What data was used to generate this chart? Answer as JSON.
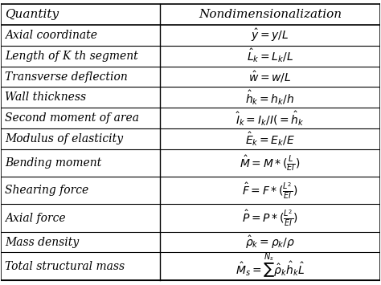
{
  "title_col1": "Quantity",
  "title_col2": "Nondimensionalization",
  "rows": [
    [
      "Axial coordinate",
      "$\\hat{y} = y/L$"
    ],
    [
      "Length of K th segment",
      "$\\hat{L}_k = L_k/L$"
    ],
    [
      "Transverse deflection",
      "$\\hat{w} = w/L$"
    ],
    [
      "Wall thickness",
      "$\\hat{h}_k = h_k/h$"
    ],
    [
      "Second moment of area",
      "$\\hat{I}_k = I_k/I(=\\hat{h}_k$"
    ],
    [
      "Modulus of elasticity",
      "$\\hat{E}_k = E_k/E$"
    ],
    [
      "Bending moment",
      "$\\hat{M} = M*(\\frac{L}{EI})$"
    ],
    [
      "Shearing force",
      "$\\hat{F} = F*(\\frac{L^2}{EI})$"
    ],
    [
      "Axial force",
      "$\\hat{P} = P*(\\frac{L^2}{EI})$"
    ],
    [
      "Mass density",
      "$\\hat{\\rho}_k = \\rho_k/\\rho$"
    ],
    [
      "Total structural mass",
      "$\\hat{M}_s = \\sum^{N_s} \\hat{\\rho}_k \\hat{h}_k \\hat{L}$"
    ]
  ],
  "col_split": 0.42,
  "bg_color": "#ffffff",
  "line_color": "#000000",
  "text_color": "#000000",
  "header_fontsize": 11,
  "row_fontsize": 10
}
